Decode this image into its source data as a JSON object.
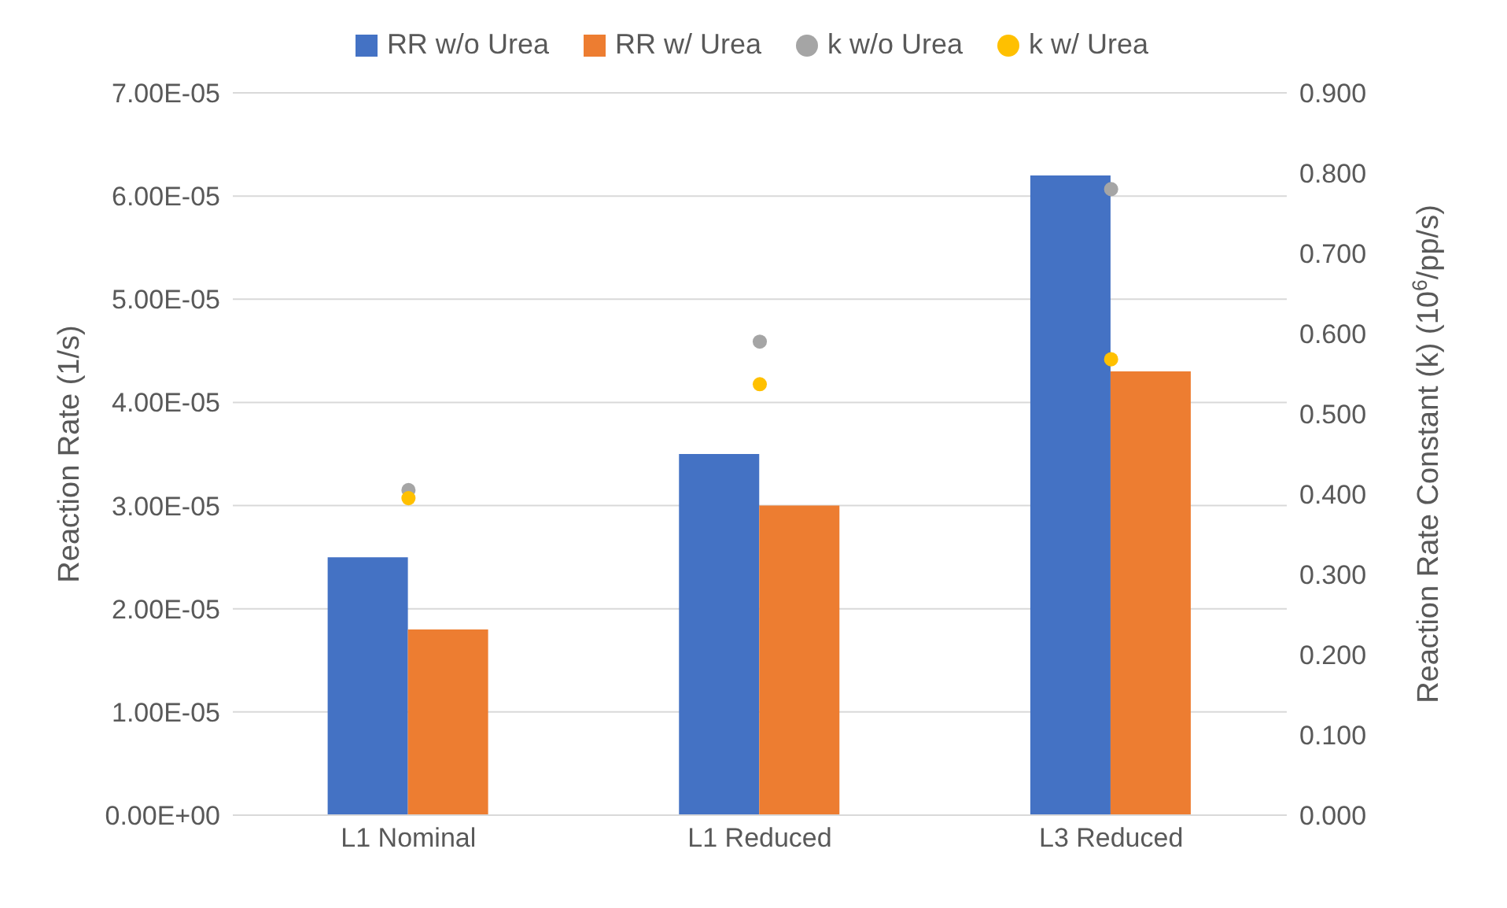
{
  "chart_data": {
    "type": "bar",
    "categories": [
      "L1 Nominal",
      "L1 Reduced",
      "L3 Reduced"
    ],
    "ylabel": "Reaction Rate (1/s)",
    "y2label": "Reaction Rate Constant (k) (10$^{6}$/pp/s)",
    "series": [
      {
        "name": "RR w/o Urea",
        "color": "#4472c4",
        "values": [
          2.5e-05,
          3.5e-05,
          6.2e-05
        ]
      },
      {
        "name": "RR w/ Urea",
        "color": "#ed7d31",
        "values": [
          1.8e-05,
          3e-05,
          4.3e-05
        ]
      },
      {
        "name": "k w/o Urea",
        "type": "scatter",
        "axis": "y2",
        "color": "#a5a5a5",
        "values": [
          0.405,
          0.59,
          0.78
        ]
      },
      {
        "name": "k w/ Urea",
        "type": "scatter",
        "axis": "y2",
        "color": "#ffc000",
        "values": [
          0.395,
          0.537,
          0.568
        ]
      }
    ],
    "ylim": [
      0,
      7e-05
    ],
    "yticks": [
      {
        "value": 0,
        "label": "0.00E+00"
      },
      {
        "value": 1e-05,
        "label": "1.00E-05"
      },
      {
        "value": 2e-05,
        "label": "2.00E-05"
      },
      {
        "value": 3e-05,
        "label": "3.00E-05"
      },
      {
        "value": 4e-05,
        "label": "4.00E-05"
      },
      {
        "value": 5e-05,
        "label": "5.00E-05"
      },
      {
        "value": 6e-05,
        "label": "6.00E-05"
      },
      {
        "value": 7e-05,
        "label": "7.00E-05"
      }
    ],
    "y2lim": [
      0,
      0.9
    ],
    "y2ticks": [
      {
        "value": 0,
        "label": "0.000"
      },
      {
        "value": 0.1,
        "label": "0.100"
      },
      {
        "value": 0.2,
        "label": "0.200"
      },
      {
        "value": 0.3,
        "label": "0.300"
      },
      {
        "value": 0.4,
        "label": "0.400"
      },
      {
        "value": 0.5,
        "label": "0.500"
      },
      {
        "value": 0.6,
        "label": "0.600"
      },
      {
        "value": 0.7,
        "label": "0.700"
      },
      {
        "value": 0.8,
        "label": "0.800"
      },
      {
        "value": 0.9,
        "label": "0.900"
      }
    ],
    "grid": "y",
    "legend": "top",
    "marker": "circle"
  }
}
